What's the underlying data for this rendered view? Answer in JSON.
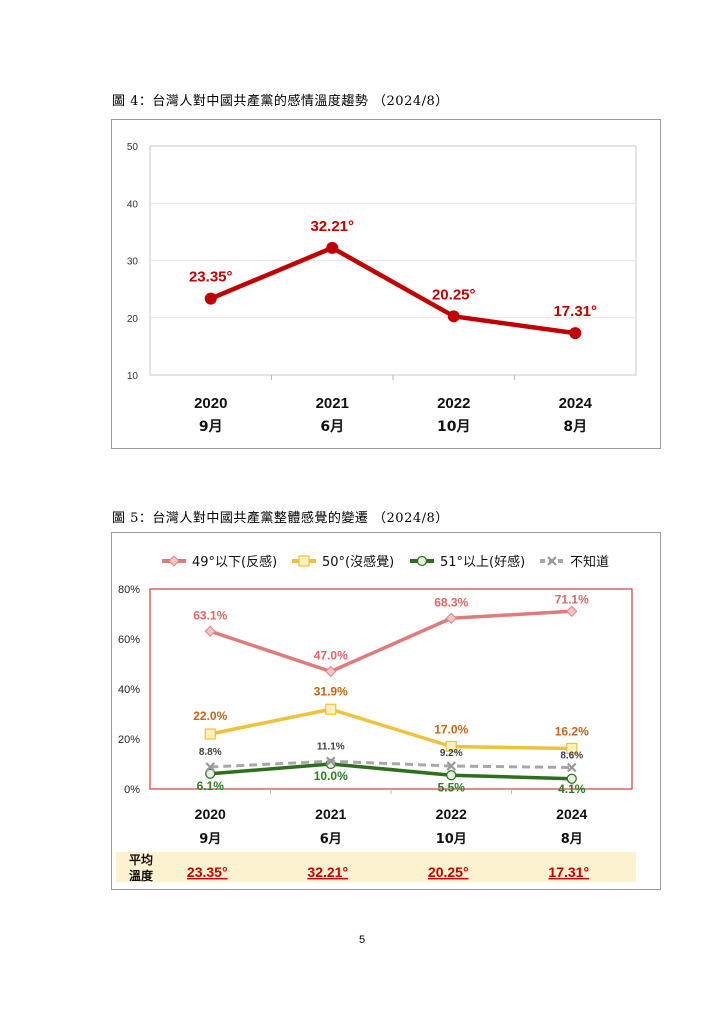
{
  "chart_data": [
    {
      "type": "line",
      "title": "圖 4：台灣人對中國共產黨的感情溫度趨勢 （2024/8）",
      "categories": [
        "2020",
        "2021",
        "2022",
        "2024"
      ],
      "category_sublabels": [
        "9月",
        "6月",
        "10月",
        "8月"
      ],
      "yticks": [
        "10",
        "20",
        "30",
        "40",
        "50"
      ],
      "ylim": [
        10,
        50
      ],
      "grid": true,
      "series": [
        {
          "values": [
            23.35,
            32.21,
            20.25,
            17.31
          ],
          "labels": [
            "23.35°",
            "32.21°",
            "20.25°",
            "17.31°"
          ],
          "color": "#c00000"
        }
      ]
    },
    {
      "type": "line",
      "title": "圖 5：台灣人對中國共產黨整體感覺的變遷 （2024/8）",
      "categories": [
        "2020",
        "2021",
        "2022",
        "2024"
      ],
      "category_sublabels": [
        "9月",
        "6月",
        "10月",
        "8月"
      ],
      "yticks": [
        "0%",
        "20%",
        "40%",
        "60%",
        "80%"
      ],
      "ylim": [
        0,
        80
      ],
      "legend": "top",
      "series": [
        {
          "name": "49°以下(反感)",
          "values": [
            63.1,
            47.0,
            68.3,
            71.1
          ],
          "labels": [
            "63.1%",
            "47.0%",
            "68.3%",
            "71.1%"
          ],
          "color": "#e07b7b",
          "label_color": "#e06666",
          "marker": "diamond"
        },
        {
          "name": "50°(沒感覺)",
          "values": [
            22.0,
            31.9,
            17.0,
            16.2
          ],
          "labels": [
            "22.0%",
            "31.9%",
            "17.0%",
            "16.2%"
          ],
          "color": "#eec23a",
          "label_color": "#c0661a",
          "marker": "square"
        },
        {
          "name": "51°以上(好感)",
          "values": [
            6.1,
            10.0,
            5.5,
            4.1
          ],
          "labels": [
            "6.1%",
            "10.0%",
            "5.5%",
            "4.1%"
          ],
          "color": "#2e6e1e",
          "label_color": "#2e7d1e",
          "marker": "circle"
        },
        {
          "name": "不知道",
          "values": [
            8.8,
            11.1,
            9.2,
            8.6
          ],
          "labels": [
            "8.8%",
            "11.1%",
            "9.2%",
            "8.6%"
          ],
          "color": "#a8a8a8",
          "label_color": "#404040",
          "marker": "x",
          "dashed": true
        }
      ],
      "avg_row": {
        "label_line1": "平均",
        "label_line2": "溫度",
        "values": [
          "23.35°",
          "32.21°",
          "20.25°",
          "17.31°"
        ],
        "color": "#c00000",
        "background": "#fdf2d0"
      }
    }
  ],
  "page_number": "5"
}
